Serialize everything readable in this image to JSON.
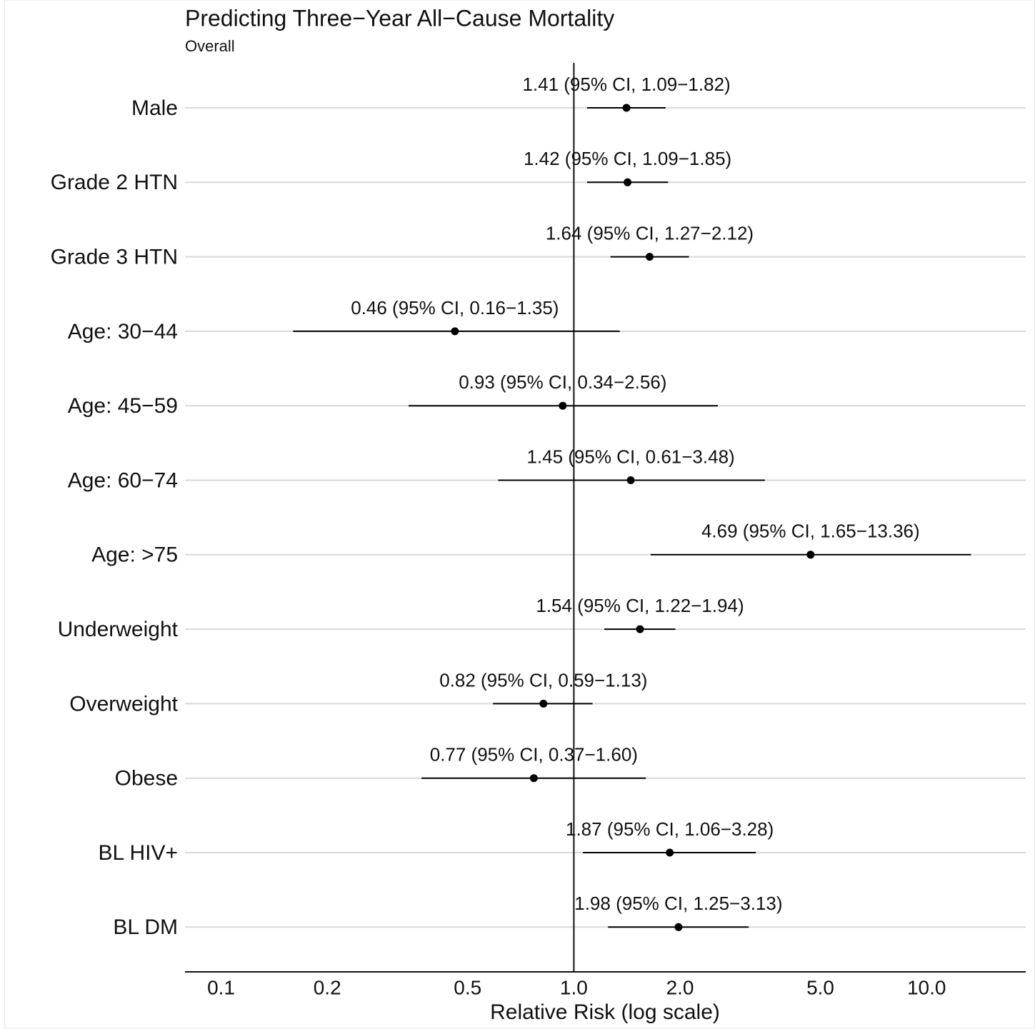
{
  "chart_data": {
    "type": "forest",
    "title": "Predicting Three−Year All−Cause Mortality",
    "subtitle": "Overall",
    "x_label": "Relative Risk (log scale)",
    "categories": [
      "Male",
      "Grade 2 HTN",
      "Grade 3 HTN",
      "Age: 30−44",
      "Age: 45−59",
      "Age: 60−74",
      "Age: >75",
      "Underweight",
      "Overweight",
      "Obese",
      "BL HIV+",
      "BL DM"
    ],
    "values": [
      1.41,
      1.42,
      1.64,
      0.46,
      0.93,
      1.45,
      4.69,
      1.54,
      0.82,
      0.77,
      1.87,
      1.98
    ],
    "lower": [
      1.09,
      1.09,
      1.27,
      0.16,
      0.34,
      0.61,
      1.65,
      1.22,
      0.59,
      0.37,
      1.06,
      1.25
    ],
    "upper": [
      1.82,
      1.85,
      2.12,
      1.35,
      2.56,
      3.48,
      13.36,
      1.94,
      1.13,
      1.6,
      3.28,
      3.13
    ],
    "value_labels": [
      "1.41 (95% CI, 1.09−1.82)",
      "1.42 (95% CI, 1.09−1.85)",
      "1.64 (95% CI, 1.27−2.12)",
      "0.46 (95% CI, 0.16−1.35)",
      "0.93 (95% CI, 0.34−2.56)",
      "1.45 (95% CI, 0.61−3.48)",
      "4.69 (95% CI, 1.65−13.36)",
      "1.54 (95% CI, 1.22−1.94)",
      "0.82 (95% CI, 0.59−1.13)",
      "0.77 (95% CI, 0.37−1.60)",
      "1.87 (95% CI, 1.06−3.28)",
      "1.98 (95% CI, 1.25−3.13)"
    ],
    "color": "#000000",
    "reference_line": 1,
    "x_log": true,
    "xlim": [
      0.079,
      19.1
    ],
    "xticks": [
      0.1,
      0.2,
      0.5,
      {
        "value": 1,
        "label": "1.0"
      },
      {
        "value": 2,
        "label": "2.0"
      },
      {
        "value": 5,
        "label": "5.0"
      },
      {
        "value": 10,
        "label": "10.0"
      }
    ],
    "grid": true
  }
}
